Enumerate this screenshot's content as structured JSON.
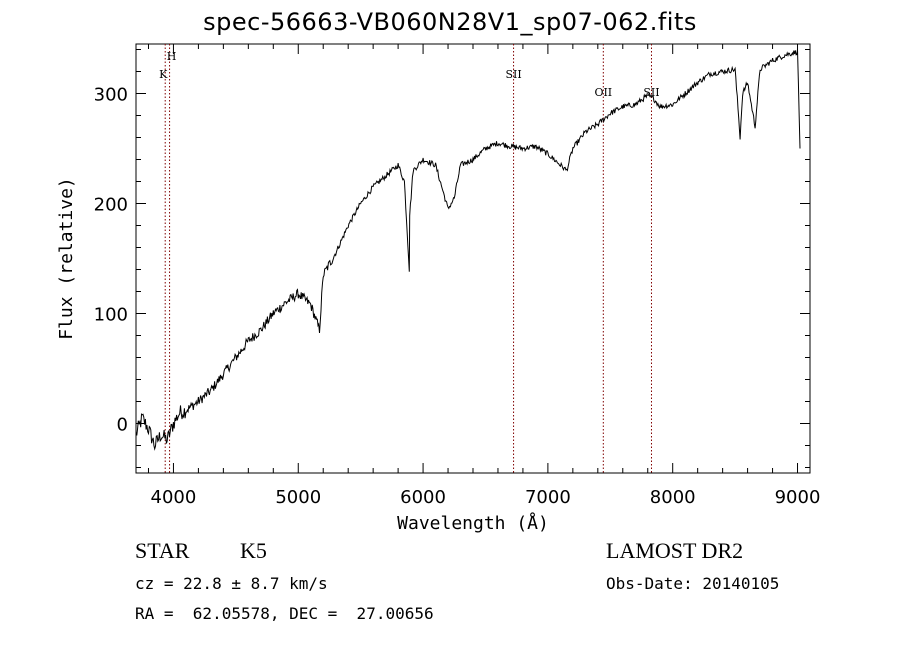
{
  "chart_data": {
    "type": "line",
    "title": "spec-56663-VB060N28V1_sp07-062.fits",
    "xlabel": "Wavelength (Å)",
    "ylabel": "Flux (relative)",
    "xlim": [
      3700,
      9100
    ],
    "ylim": [
      -45,
      345
    ],
    "xticks": [
      4000,
      5000,
      6000,
      7000,
      8000,
      9000
    ],
    "yticks": [
      0,
      100,
      200,
      300
    ],
    "grid": false,
    "line_color": "#000000",
    "marker_color": "#800000",
    "series": [
      {
        "x": [
          3700,
          3750,
          3800,
          3850,
          3900,
          3950,
          4000,
          4050,
          4100,
          4200,
          4300,
          4400,
          4500,
          4600,
          4700,
          4800,
          4900,
          5000,
          5100,
          5170,
          5200,
          5300,
          5400,
          5500,
          5600,
          5700,
          5800,
          5850,
          5890,
          5893,
          5920,
          6000,
          6100,
          6200,
          6250,
          6300,
          6400,
          6500,
          6600,
          6700,
          6800,
          6900,
          7000,
          7100,
          7150,
          7200,
          7300,
          7400,
          7500,
          7600,
          7700,
          7800,
          7850,
          7900,
          8000,
          8100,
          8200,
          8300,
          8400,
          8500,
          8540,
          8560,
          8600,
          8660,
          8700,
          8800,
          8900,
          9000,
          9020
        ],
        "y": [
          -10,
          5,
          -5,
          -20,
          -10,
          -15,
          0,
          10,
          12,
          20,
          30,
          45,
          60,
          75,
          85,
          100,
          110,
          118,
          108,
          85,
          135,
          155,
          180,
          200,
          215,
          225,
          235,
          220,
          140,
          190,
          230,
          240,
          235,
          195,
          205,
          235,
          240,
          250,
          255,
          252,
          250,
          252,
          245,
          235,
          230,
          250,
          265,
          272,
          282,
          288,
          290,
          298,
          295,
          288,
          290,
          300,
          310,
          318,
          320,
          322,
          260,
          300,
          310,
          270,
          322,
          330,
          335,
          338,
          250
        ]
      }
    ],
    "line_markers": [
      {
        "label": "K",
        "x": 3934
      },
      {
        "label": "H",
        "x": 3969
      },
      {
        "label": "SII",
        "x": 6725
      },
      {
        "label": "OII",
        "x": 7444
      },
      {
        "label": "SII",
        "x": 7830
      }
    ]
  },
  "info": {
    "class": "STAR",
    "subclass": "K5",
    "survey": "LAMOST DR2",
    "cz": "cz = 22.8 ± 8.7 km/s",
    "obs_date": "Obs-Date: 20140105",
    "radec": "RA =  62.05578, DEC =  27.00656"
  }
}
